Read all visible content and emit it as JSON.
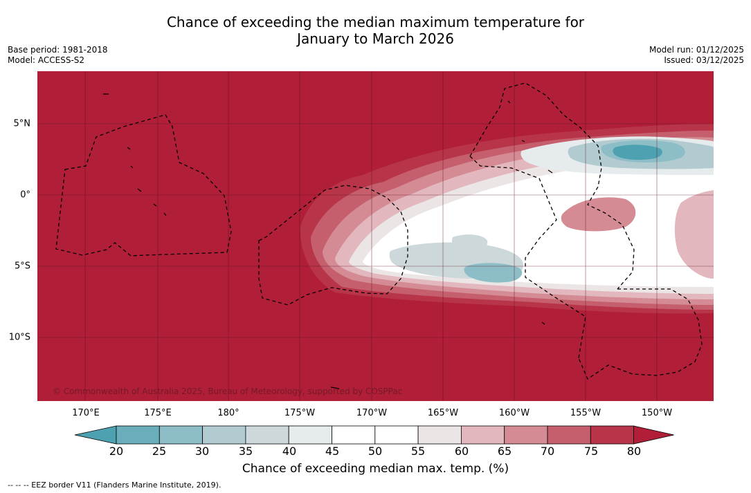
{
  "header": {
    "title_line1": "Chance of exceeding the median maximum temperature for",
    "title_line2": "January to March 2026",
    "base_period": "Base period: 1981-2018",
    "model": "Model: ACCESS-S2",
    "model_run": "Model run: 01/12/2025",
    "issued": "Issued: 03/12/2025"
  },
  "map": {
    "longitude_labels": [
      "170°E",
      "175°E",
      "180°",
      "175°W",
      "170°W",
      "165°W",
      "160°W",
      "155°W",
      "150°W"
    ],
    "latitude_labels": [
      "5°N",
      "0°",
      "5°S",
      "10°S"
    ],
    "copyright": "© Commonwealth of Australia 2025, Bureau of Meteorology, supported by COSPPac",
    "background_color": "#b01e38"
  },
  "colorbar": {
    "label": "Chance of exceeding median max. temp. (%)",
    "ticks": [
      "20",
      "25",
      "30",
      "35",
      "40",
      "45",
      "50",
      "55",
      "60",
      "65",
      "70",
      "75",
      "80"
    ],
    "colors": [
      "#4ea1b0",
      "#6aaebb",
      "#8dbdc6",
      "#b1cbd0",
      "#cdd8db",
      "#e6ecee",
      "#ffffff",
      "#ffffff",
      "#ebe6e5",
      "#e2b8be",
      "#d48b94",
      "#c55f6e",
      "#b83448",
      "#b01e38"
    ]
  },
  "legend_footer": "--  --  -- EEZ border V11 (Flanders Marine Institute, 2019)."
}
